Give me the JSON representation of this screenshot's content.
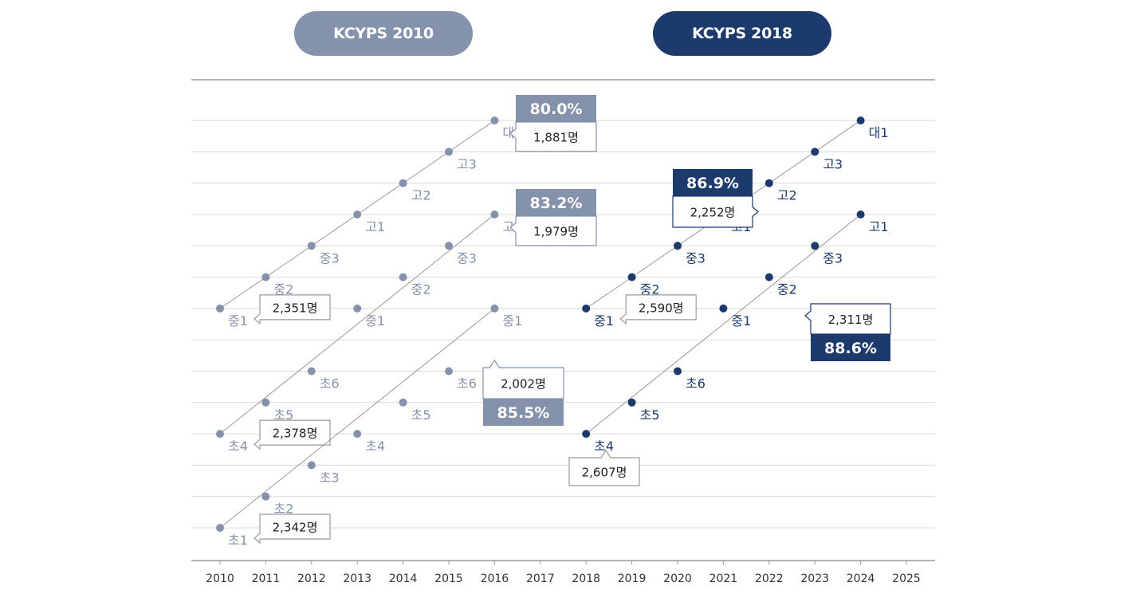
{
  "colors": {
    "kcyps2010": "#8592ac",
    "kcyps2018": "#1d3a6c",
    "grid": "#d9d9d9",
    "axis": "#999999",
    "text": "#333333"
  },
  "cohort_2010_label": "KCYPS 2010",
  "cohort_2018_label": "KCYPS 2018",
  "chart_data": {
    "type": "line",
    "title": "",
    "xlabel": "",
    "ylabel": "",
    "x_ticks": [
      2010,
      2011,
      2012,
      2013,
      2014,
      2015,
      2016,
      2017,
      2018,
      2019,
      2020,
      2021,
      2022,
      2023,
      2024,
      2025
    ],
    "xlim": [
      2010,
      2025
    ],
    "grid": true,
    "series": [
      {
        "cohort": "KCYPS 2010",
        "years": [
          2010,
          2011,
          2012,
          2013,
          2014,
          2015,
          2016
        ],
        "grades": [
          "중1",
          "중2",
          "중3",
          "고1",
          "고2",
          "고3",
          "대1"
        ],
        "start_count": "2,351명",
        "end_count": "1,881명",
        "retention": "80.0%"
      },
      {
        "cohort": "KCYPS 2010",
        "years": [
          2010,
          2011,
          2012,
          2013,
          2014,
          2015,
          2016
        ],
        "grades": [
          "초4",
          "초5",
          "초6",
          "중1",
          "중2",
          "중3",
          "고1"
        ],
        "start_count": "2,378명",
        "end_count": "1,979명",
        "retention": "83.2%"
      },
      {
        "cohort": "KCYPS 2010",
        "years": [
          2010,
          2011,
          2012,
          2013,
          2014,
          2015,
          2016
        ],
        "grades": [
          "초1",
          "초2",
          "초3",
          "초4",
          "초5",
          "초6",
          "중1"
        ],
        "start_count": "2,342명",
        "end_count": "2,002명",
        "retention": "85.5%"
      },
      {
        "cohort": "KCYPS 2018",
        "years": [
          2018,
          2019,
          2020,
          2021,
          2022,
          2023,
          2024
        ],
        "grades": [
          "중1",
          "중2",
          "중3",
          "고1",
          "고2",
          "고3",
          "대1"
        ],
        "start_count": "2,590명",
        "end_count": "2,252명",
        "retention": "86.9%"
      },
      {
        "cohort": "KCYPS 2018",
        "years": [
          2018,
          2019,
          2020,
          2021,
          2022,
          2023,
          2024
        ],
        "grades": [
          "초4",
          "초5",
          "초6",
          "중1",
          "중2",
          "중3",
          "고1"
        ],
        "start_count": "2,607명",
        "end_count": "2,311명",
        "retention": "88.6%"
      }
    ]
  }
}
